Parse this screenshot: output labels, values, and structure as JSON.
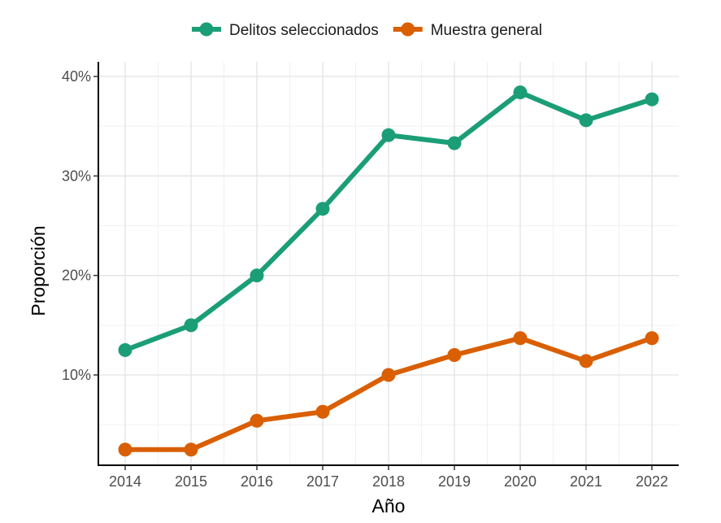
{
  "chart_data": {
    "type": "line",
    "title": "",
    "xlabel": "Año",
    "ylabel": "Proporción",
    "x": [
      2014,
      2015,
      2016,
      2017,
      2018,
      2019,
      2020,
      2021,
      2022
    ],
    "x_tick_labels": [
      "2014",
      "2015",
      "2016",
      "2017",
      "2018",
      "2019",
      "2020",
      "2021",
      "2022"
    ],
    "y_ticks": [
      0.1,
      0.2,
      0.3,
      0.4
    ],
    "y_tick_labels": [
      "10%",
      "20%",
      "30%",
      "40%"
    ],
    "ylim": [
      0.01,
      0.4
    ],
    "grid": true,
    "legend_position": "top",
    "series": [
      {
        "name": "Delitos seleccionados",
        "color": "#1b9e77",
        "values": [
          0.125,
          0.15,
          0.2,
          0.267,
          0.341,
          0.333,
          0.384,
          0.356,
          0.377
        ]
      },
      {
        "name": "Muestra general",
        "color": "#d95f02",
        "values": [
          0.025,
          0.025,
          0.054,
          0.063,
          0.1,
          0.12,
          0.137,
          0.114,
          0.137
        ]
      }
    ]
  }
}
